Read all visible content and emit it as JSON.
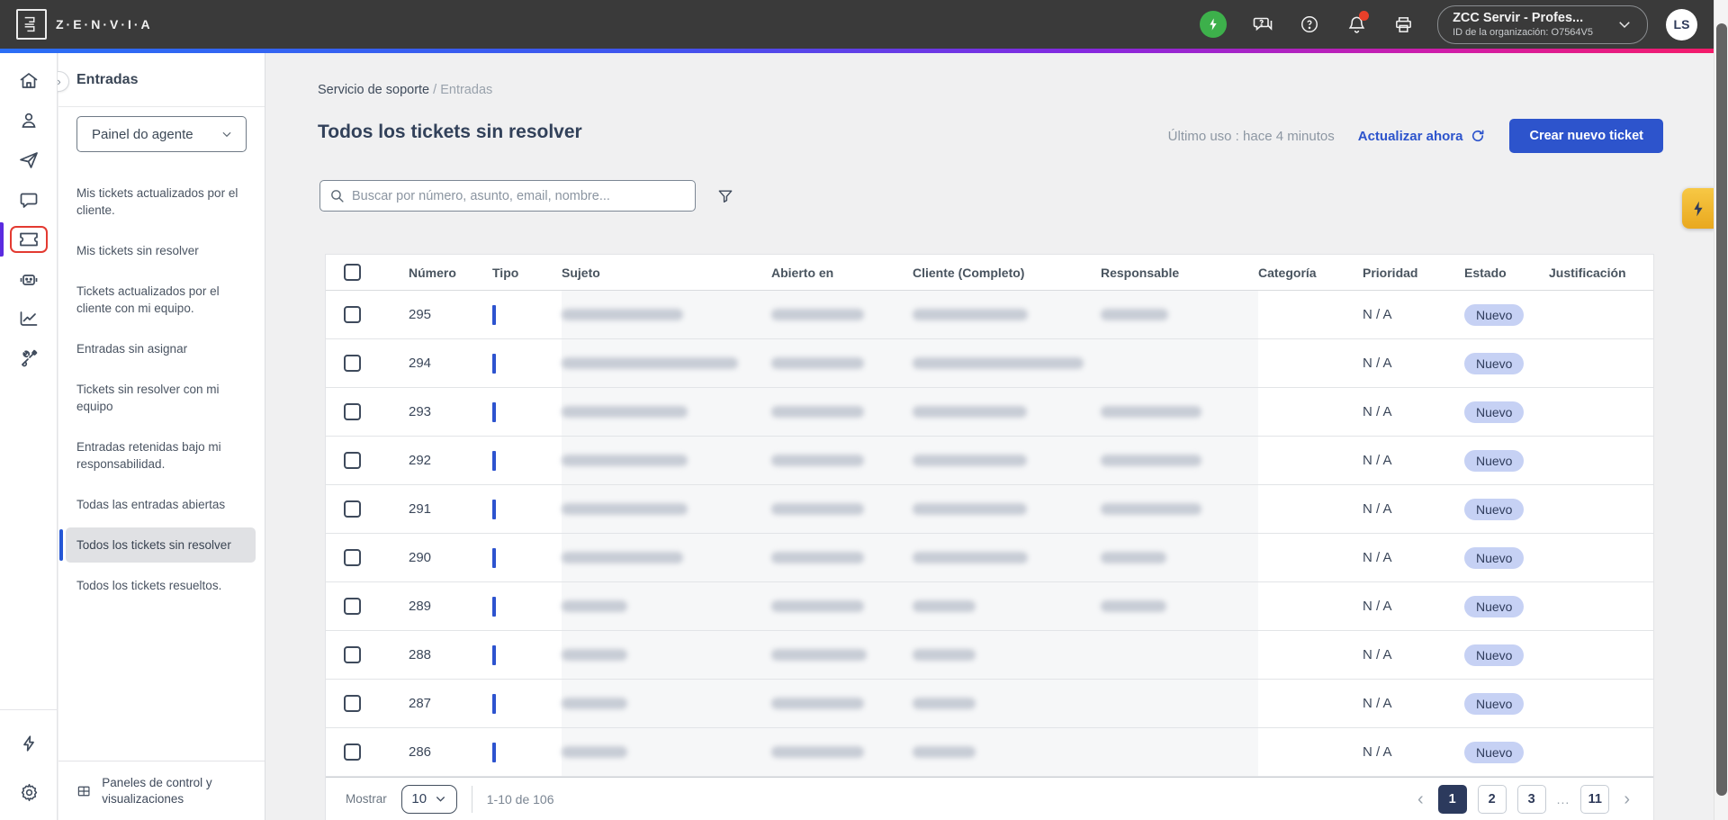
{
  "header": {
    "brand": "Z·E·N·V·I·A",
    "org_selector": {
      "name": "ZCC Servir - Profes...",
      "org_id": "ID de la organización: O7564V5"
    },
    "avatar_initials": "LS",
    "icons": [
      "status-online-icon",
      "chat-feedback-icon",
      "help-icon",
      "notifications-icon",
      "printer-icon"
    ]
  },
  "icon_rail": {
    "items": [
      "home-icon",
      "contacts-icon",
      "send-icon",
      "chat-icon",
      "tickets-icon",
      "bot-icon",
      "analytics-icon",
      "tools-icon"
    ],
    "active_item": "tickets-icon",
    "bottom_items": [
      "flash-icon",
      "settings-icon"
    ]
  },
  "sidebar": {
    "title": "Entradas",
    "panel_select": "Painel do agente",
    "items": [
      {
        "label": "Mis tickets actualizados por el cliente.",
        "active": false
      },
      {
        "label": "Mis tickets sin resolver",
        "active": false
      },
      {
        "label": "Tickets actualizados por el cliente con mi equipo.",
        "active": false
      },
      {
        "label": "Entradas sin asignar",
        "active": false
      },
      {
        "label": "Tickets sin resolver con mi equipo",
        "active": false
      },
      {
        "label": "Entradas retenidas bajo mi responsabilidad.",
        "active": false
      },
      {
        "label": "Todas las entradas abiertas",
        "active": false
      },
      {
        "label": "Todos los tickets sin resolver",
        "active": true
      },
      {
        "label": "Todos los tickets resueltos.",
        "active": false
      }
    ],
    "footer_link": "Paneles de control y visualizaciones"
  },
  "breadcrumb": {
    "parent": "Servicio de soporte",
    "separator": "/",
    "current": "Entradas"
  },
  "page": {
    "title": "Todos los tickets sin resolver",
    "last_use": "Último uso : hace 4 minutos",
    "refresh_label": "Actualizar ahora",
    "create_button": "Crear nuevo ticket"
  },
  "search": {
    "placeholder": "Buscar por número, asunto, email, nombre..."
  },
  "table": {
    "columns": [
      "Número",
      "Tipo",
      "Sujeto",
      "Abierto en",
      "Cliente (Completo)",
      "Responsable",
      "Categoría",
      "Prioridad",
      "Estado",
      "Justificación"
    ],
    "redacted_note": "Sujeto, Abierto en, Cliente y Responsable aparecen difuminados (contenido censurado)",
    "rows": [
      {
        "numero": "295",
        "prioridad": "N / A",
        "estado": "Nuevo",
        "blobs": [
          135,
          103,
          128,
          75
        ]
      },
      {
        "numero": "294",
        "prioridad": "N / A",
        "estado": "Nuevo",
        "blobs": [
          196,
          103,
          190,
          0
        ]
      },
      {
        "numero": "293",
        "prioridad": "N / A",
        "estado": "Nuevo",
        "blobs": [
          140,
          103,
          127,
          112
        ]
      },
      {
        "numero": "292",
        "prioridad": "N / A",
        "estado": "Nuevo",
        "blobs": [
          140,
          103,
          127,
          112
        ]
      },
      {
        "numero": "291",
        "prioridad": "N / A",
        "estado": "Nuevo",
        "blobs": [
          140,
          103,
          127,
          112
        ]
      },
      {
        "numero": "290",
        "prioridad": "N / A",
        "estado": "Nuevo",
        "blobs": [
          135,
          103,
          128,
          73
        ]
      },
      {
        "numero": "289",
        "prioridad": "N / A",
        "estado": "Nuevo",
        "blobs": [
          73,
          103,
          70,
          73
        ]
      },
      {
        "numero": "288",
        "prioridad": "N / A",
        "estado": "Nuevo",
        "blobs": [
          73,
          106,
          70,
          0
        ]
      },
      {
        "numero": "287",
        "prioridad": "N / A",
        "estado": "Nuevo",
        "blobs": [
          73,
          103,
          70,
          0
        ]
      },
      {
        "numero": "286",
        "prioridad": "N / A",
        "estado": "Nuevo",
        "blobs": [
          73,
          103,
          70,
          0
        ]
      }
    ]
  },
  "pagination": {
    "show_label": "Mostrar",
    "page_size": "10",
    "range_text": "1-10 de 106",
    "pages": [
      {
        "label": "1",
        "active": true
      },
      {
        "label": "2",
        "active": false
      },
      {
        "label": "3",
        "active": false
      },
      {
        "label": "...",
        "ellipsis": true
      },
      {
        "label": "11",
        "active": false
      }
    ]
  },
  "colors": {
    "accent_blue": "#2d54cc",
    "badge_bg": "#c6d1f4",
    "active_page_bg": "#2c3a5d",
    "fab_yellow": "#eaa81e",
    "status_green": "#3db04b",
    "alert_red": "#e33a31",
    "rail_indigo": "#5b2be0",
    "topbar_bg": "#3a3a3a"
  }
}
